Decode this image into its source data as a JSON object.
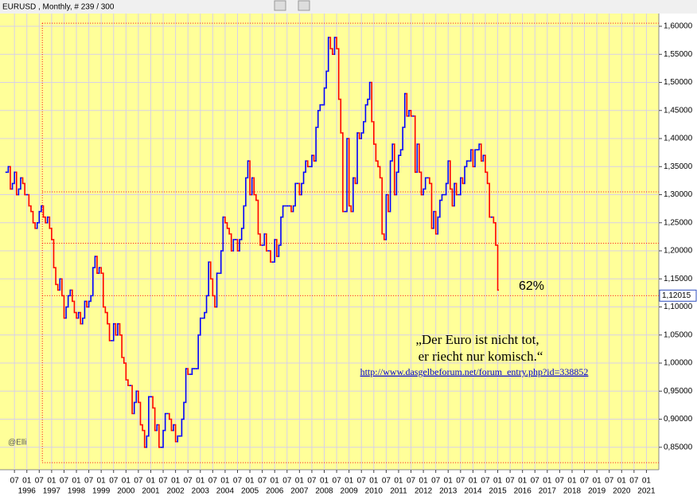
{
  "chart_data": {
    "type": "bar",
    "title": "EURUSD , Monthly, # 239 / 300",
    "up_color": "#0000ff",
    "down_color": "#ff0000",
    "grid": true,
    "xlim": [
      -3,
      316
    ],
    "ylim": [
      0.81,
      1.6227
    ],
    "yticks": [
      {
        "value": 0.85,
        "label": "0,85000"
      },
      {
        "value": 0.9,
        "label": "0,90000"
      },
      {
        "value": 0.95,
        "label": "0,95000"
      },
      {
        "value": 1.0,
        "label": "1,00000"
      },
      {
        "value": 1.05,
        "label": "1,05000"
      },
      {
        "value": 1.1,
        "label": "1,10000"
      },
      {
        "value": 1.15,
        "label": "1,15000"
      },
      {
        "value": 1.2,
        "label": "1,20000"
      },
      {
        "value": 1.25,
        "label": "1,25000"
      },
      {
        "value": 1.3,
        "label": "1,30000"
      },
      {
        "value": 1.35,
        "label": "1,35000"
      },
      {
        "value": 1.4,
        "label": "1,40000"
      },
      {
        "value": 1.45,
        "label": "1,45000"
      },
      {
        "value": 1.5,
        "label": "1,50000"
      },
      {
        "value": 1.55,
        "label": "1,55000"
      },
      {
        "value": 1.6,
        "label": "1,60000"
      }
    ],
    "xticks": [
      {
        "value": 4,
        "label": "07"
      },
      {
        "value": 10,
        "label": "01"
      },
      {
        "value": 16,
        "label": "07"
      },
      {
        "value": 22,
        "label": "01"
      },
      {
        "value": 28,
        "label": "07"
      },
      {
        "value": 34,
        "label": "01"
      },
      {
        "value": 40,
        "label": "07"
      },
      {
        "value": 46,
        "label": "01"
      },
      {
        "value": 52,
        "label": "07"
      },
      {
        "value": 58,
        "label": "01"
      },
      {
        "value": 64,
        "label": "07"
      },
      {
        "value": 70,
        "label": "01"
      },
      {
        "value": 76,
        "label": "07"
      },
      {
        "value": 82,
        "label": "01"
      },
      {
        "value": 88,
        "label": "07"
      },
      {
        "value": 94,
        "label": "01"
      },
      {
        "value": 100,
        "label": "07"
      },
      {
        "value": 106,
        "label": "01"
      },
      {
        "value": 112,
        "label": "07"
      },
      {
        "value": 118,
        "label": "01"
      },
      {
        "value": 124,
        "label": "07"
      },
      {
        "value": 130,
        "label": "01"
      },
      {
        "value": 136,
        "label": "07"
      },
      {
        "value": 142,
        "label": "01"
      },
      {
        "value": 148,
        "label": "07"
      },
      {
        "value": 154,
        "label": "01"
      },
      {
        "value": 160,
        "label": "07"
      },
      {
        "value": 166,
        "label": "01"
      },
      {
        "value": 172,
        "label": "07"
      },
      {
        "value": 178,
        "label": "01"
      },
      {
        "value": 184,
        "label": "07"
      },
      {
        "value": 190,
        "label": "01"
      },
      {
        "value": 196,
        "label": "07"
      },
      {
        "value": 202,
        "label": "01"
      },
      {
        "value": 208,
        "label": "07"
      },
      {
        "value": 214,
        "label": "01"
      },
      {
        "value": 220,
        "label": "07"
      },
      {
        "value": 226,
        "label": "01"
      },
      {
        "value": 232,
        "label": "07"
      },
      {
        "value": 238,
        "label": "01"
      },
      {
        "value": 244,
        "label": "07"
      },
      {
        "value": 250,
        "label": "01"
      },
      {
        "value": 256,
        "label": "07"
      },
      {
        "value": 262,
        "label": "01"
      },
      {
        "value": 268,
        "label": "07"
      },
      {
        "value": 274,
        "label": "01"
      },
      {
        "value": 280,
        "label": "07"
      },
      {
        "value": 286,
        "label": "01"
      },
      {
        "value": 292,
        "label": "07"
      },
      {
        "value": 298,
        "label": "01"
      },
      {
        "value": 304,
        "label": "07"
      },
      {
        "value": 310,
        "label": "01"
      }
    ],
    "year_ticks": [
      {
        "value": 10,
        "label": "1996"
      },
      {
        "value": 22,
        "label": "1997"
      },
      {
        "value": 34,
        "label": "1998"
      },
      {
        "value": 46,
        "label": "1999"
      },
      {
        "value": 58,
        "label": "2000"
      },
      {
        "value": 70,
        "label": "2001"
      },
      {
        "value": 82,
        "label": "2002"
      },
      {
        "value": 94,
        "label": "2003"
      },
      {
        "value": 106,
        "label": "2004"
      },
      {
        "value": 118,
        "label": "2005"
      },
      {
        "value": 130,
        "label": "2006"
      },
      {
        "value": 142,
        "label": "2007"
      },
      {
        "value": 154,
        "label": "2008"
      },
      {
        "value": 166,
        "label": "2009"
      },
      {
        "value": 178,
        "label": "2010"
      },
      {
        "value": 190,
        "label": "2011"
      },
      {
        "value": 202,
        "label": "2012"
      },
      {
        "value": 214,
        "label": "2013"
      },
      {
        "value": 226,
        "label": "2014"
      },
      {
        "value": 238,
        "label": "2015"
      },
      {
        "value": 250,
        "label": "2016"
      },
      {
        "value": 262,
        "label": "2017"
      },
      {
        "value": 274,
        "label": "2018"
      },
      {
        "value": 286,
        "label": "2019"
      },
      {
        "value": 298,
        "label": "2020"
      },
      {
        "value": 310,
        "label": "2021"
      }
    ],
    "values": [
      1.34,
      1.35,
      1.31,
      1.32,
      1.34,
      1.3,
      1.31,
      1.33,
      1.32,
      1.3,
      1.3,
      1.28,
      1.27,
      1.25,
      1.24,
      1.25,
      1.27,
      1.28,
      1.26,
      1.25,
      1.26,
      1.24,
      1.22,
      1.17,
      1.14,
      1.13,
      1.15,
      1.12,
      1.08,
      1.1,
      1.12,
      1.13,
      1.11,
      1.09,
      1.08,
      1.09,
      1.07,
      1.08,
      1.11,
      1.1,
      1.11,
      1.12,
      1.17,
      1.19,
      1.16,
      1.17,
      1.16,
      1.1,
      1.09,
      1.07,
      1.04,
      1.04,
      1.07,
      1.05,
      1.07,
      1.05,
      1.01,
      1.0,
      0.97,
      0.96,
      0.96,
      0.91,
      0.93,
      0.95,
      0.93,
      0.89,
      0.88,
      0.85,
      0.87,
      0.94,
      0.94,
      0.92,
      0.88,
      0.89,
      0.85,
      0.85,
      0.88,
      0.91,
      0.91,
      0.9,
      0.88,
      0.89,
      0.86,
      0.87,
      0.87,
      0.9,
      0.93,
      0.99,
      0.98,
      0.98,
      0.99,
      0.99,
      0.99,
      1.05,
      1.08,
      1.08,
      1.09,
      1.12,
      1.18,
      1.15,
      1.12,
      1.1,
      1.16,
      1.16,
      1.2,
      1.26,
      1.25,
      1.24,
      1.23,
      1.2,
      1.22,
      1.22,
      1.2,
      1.22,
      1.24,
      1.28,
      1.33,
      1.36,
      1.3,
      1.33,
      1.3,
      1.29,
      1.23,
      1.21,
      1.21,
      1.23,
      1.2,
      1.2,
      1.18,
      1.18,
      1.22,
      1.19,
      1.21,
      1.26,
      1.28,
      1.28,
      1.28,
      1.28,
      1.27,
      1.28,
      1.32,
      1.32,
      1.3,
      1.32,
      1.34,
      1.36,
      1.35,
      1.35,
      1.37,
      1.36,
      1.42,
      1.45,
      1.46,
      1.46,
      1.49,
      1.52,
      1.58,
      1.56,
      1.55,
      1.58,
      1.56,
      1.47,
      1.41,
      1.27,
      1.27,
      1.4,
      1.28,
      1.27,
      1.33,
      1.32,
      1.41,
      1.4,
      1.41,
      1.43,
      1.46,
      1.47,
      1.5,
      1.43,
      1.39,
      1.36,
      1.35,
      1.33,
      1.23,
      1.22,
      1.3,
      1.27,
      1.36,
      1.39,
      1.3,
      1.34,
      1.37,
      1.38,
      1.42,
      1.48,
      1.44,
      1.45,
      1.44,
      1.44,
      1.34,
      1.39,
      1.34,
      1.3,
      1.31,
      1.33,
      1.33,
      1.32,
      1.24,
      1.27,
      1.23,
      1.26,
      1.29,
      1.3,
      1.3,
      1.32,
      1.36,
      1.31,
      1.28,
      1.32,
      1.3,
      1.3,
      1.33,
      1.32,
      1.35,
      1.36,
      1.36,
      1.38,
      1.35,
      1.38,
      1.38,
      1.39,
      1.36,
      1.37,
      1.34,
      1.32,
      1.26,
      1.26,
      1.25,
      1.21,
      1.13
    ],
    "levels": [
      1.305,
      1.2135
    ],
    "last_price": {
      "value": 1.12015,
      "label": "1,12015"
    },
    "box": {
      "ylim": [
        0.8225,
        1.6055
      ],
      "x_start": 17.5
    },
    "percent_label": "62%",
    "quote": [
      "„Der Euro ist nicht tot,",
      "er riecht nur komisch.“"
    ],
    "link": "http://www.dasgelbeforum.net/forum_entry.php?id=338852",
    "credit": "@Elli"
  }
}
